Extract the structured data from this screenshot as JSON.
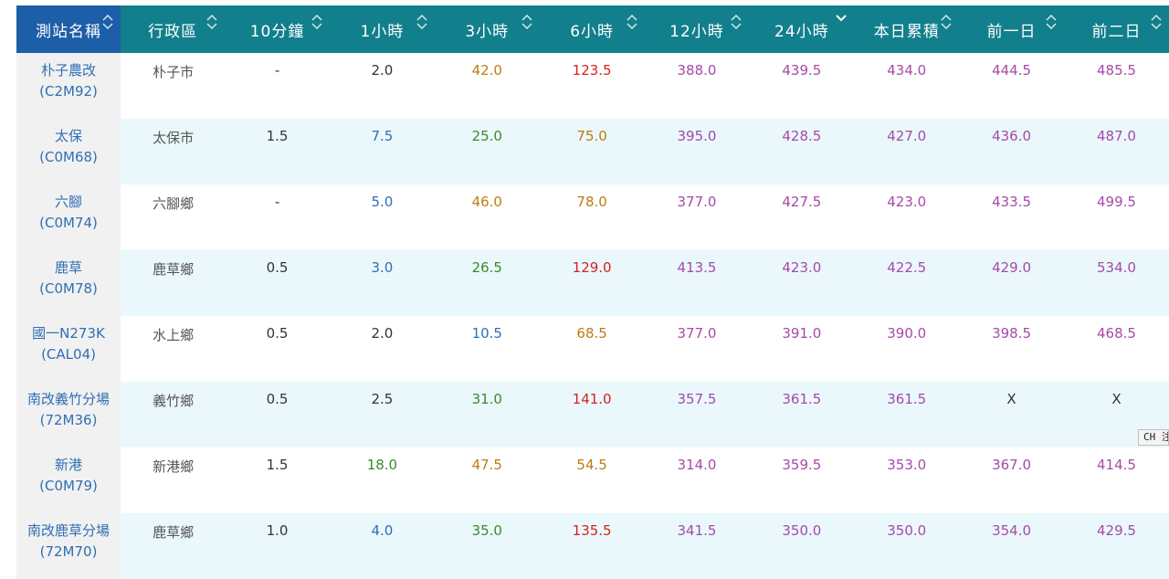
{
  "table": {
    "headers": [
      "測站名稱",
      "行政區",
      "10分鐘",
      "1小時",
      "3小時",
      "6小時",
      "12小時",
      "24小時",
      "本日累積",
      "前一日",
      "前二日"
    ],
    "sorted_column": "24小時",
    "rows": [
      {
        "name": "朴子農改",
        "code": "(C2M92)",
        "district": "朴子市",
        "values": [
          "-",
          "2.0",
          "42.0",
          "123.5",
          "388.0",
          "439.5",
          "434.0",
          "444.5",
          "485.5"
        ]
      },
      {
        "name": "太保",
        "code": "(C0M68)",
        "district": "太保市",
        "values": [
          "1.5",
          "7.5",
          "25.0",
          "75.0",
          "395.0",
          "428.5",
          "427.0",
          "436.0",
          "487.0"
        ]
      },
      {
        "name": "六腳",
        "code": "(C0M74)",
        "district": "六腳鄉",
        "values": [
          "-",
          "5.0",
          "46.0",
          "78.0",
          "377.0",
          "427.5",
          "423.0",
          "433.5",
          "499.5"
        ]
      },
      {
        "name": "鹿草",
        "code": "(C0M78)",
        "district": "鹿草鄉",
        "values": [
          "0.5",
          "3.0",
          "26.5",
          "129.0",
          "413.5",
          "423.0",
          "422.5",
          "429.0",
          "534.0"
        ]
      },
      {
        "name": "國一N273K",
        "code": "(CAL04)",
        "district": "水上鄉",
        "values": [
          "0.5",
          "2.0",
          "10.5",
          "68.5",
          "377.0",
          "391.0",
          "390.0",
          "398.5",
          "468.5"
        ]
      },
      {
        "name": "南改義竹分場",
        "code": "(72M36)",
        "district": "義竹鄉",
        "values": [
          "0.5",
          "2.5",
          "31.0",
          "141.0",
          "357.5",
          "361.5",
          "361.5",
          "X",
          "X"
        ]
      },
      {
        "name": "新港",
        "code": "(C0M79)",
        "district": "新港鄉",
        "values": [
          "1.5",
          "18.0",
          "47.5",
          "54.5",
          "314.0",
          "359.5",
          "353.0",
          "367.0",
          "414.5"
        ]
      },
      {
        "name": "南改鹿草分場",
        "code": "(72M70)",
        "district": "鹿草鄉",
        "values": [
          "1.0",
          "4.0",
          "35.0",
          "135.5",
          "341.5",
          "350.0",
          "350.0",
          "354.0",
          "429.5"
        ]
      }
    ]
  },
  "ime_indicator": "CH 注",
  "colors": {
    "header_bg": "#127f8c",
    "header_name_bg": "#1d5ea8",
    "row_alt_bg": "#eaf8fc",
    "name_cell_bg": "#f1f1f1",
    "name_text": "#2f6fb3",
    "value_default": "#333333",
    "value_blue": "#2e6fb5",
    "value_green": "#3b8a2a",
    "value_orange": "#c07a12",
    "value_red": "#d62020",
    "value_purple": "#a64aa6"
  }
}
